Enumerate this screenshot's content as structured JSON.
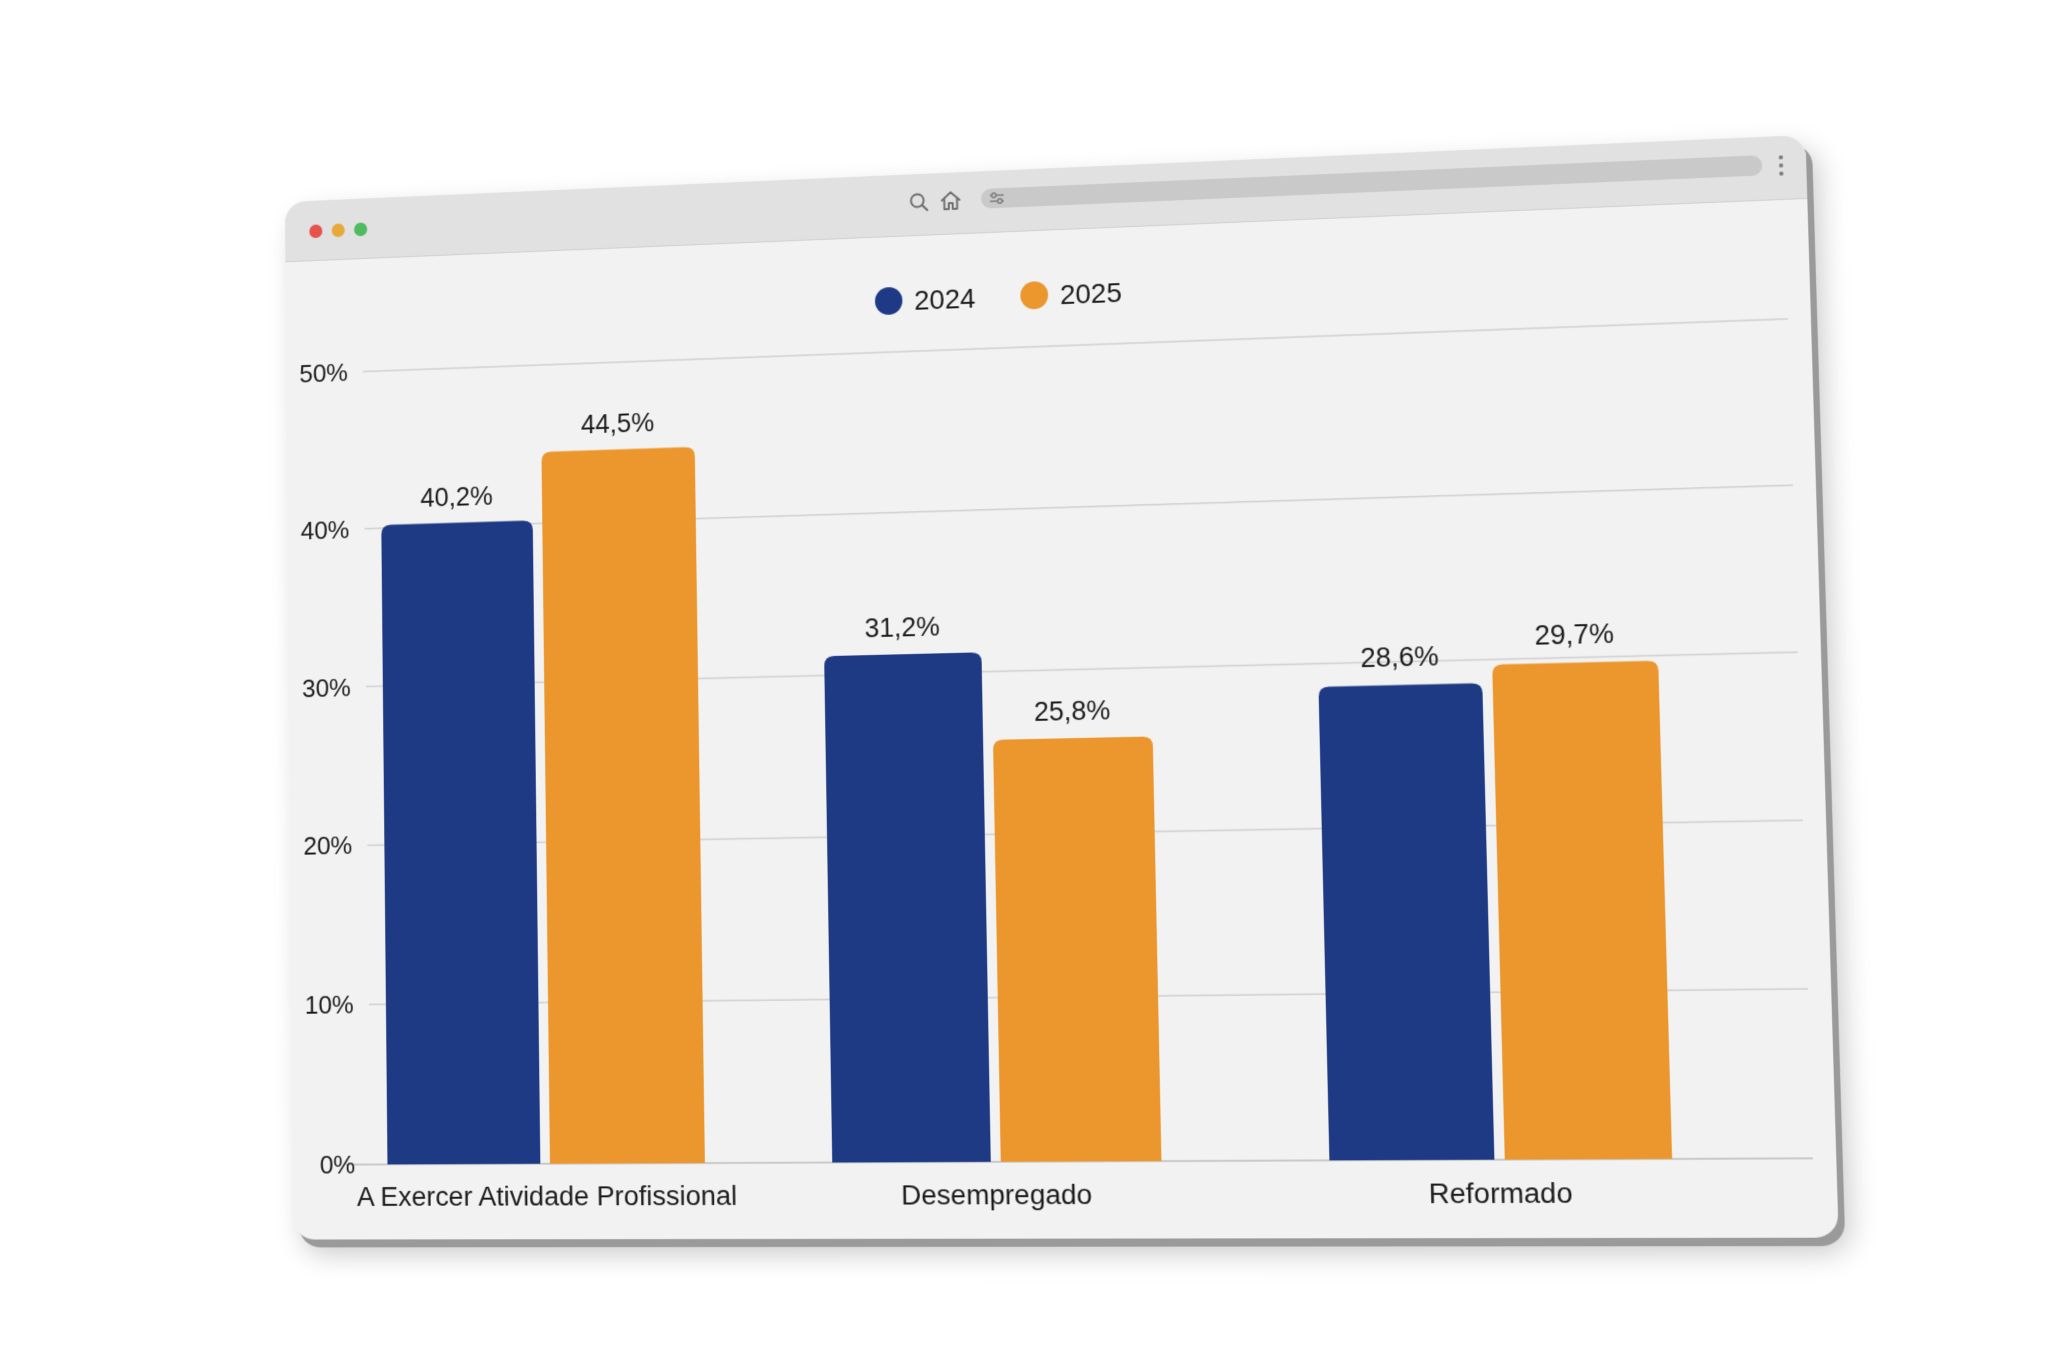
{
  "browser": {
    "icons": [
      "search-icon",
      "home-icon",
      "tune-icon",
      "more-vertical-icon"
    ]
  },
  "chart_data": {
    "type": "bar",
    "categories": [
      "A Exercer Atividade Profissional",
      "Desempregado",
      "Reformado"
    ],
    "series": [
      {
        "name": "2024",
        "values": [
          40.2,
          31.2,
          28.6
        ],
        "color": "#1e3a84",
        "labels": [
          "40,2%",
          "31,2%",
          "28,6%"
        ]
      },
      {
        "name": "2025",
        "values": [
          44.5,
          25.8,
          29.7
        ],
        "color": "#eb972d",
        "labels": [
          "44,5%",
          "25,8%",
          "29,7%"
        ]
      }
    ],
    "yticks": [
      "0%",
      "10%",
      "20%",
      "30%",
      "40%",
      "50%"
    ],
    "ylim": [
      0,
      50
    ],
    "title": "",
    "xlabel": "",
    "ylabel": "",
    "grid": true,
    "legend_position": "top-center"
  }
}
